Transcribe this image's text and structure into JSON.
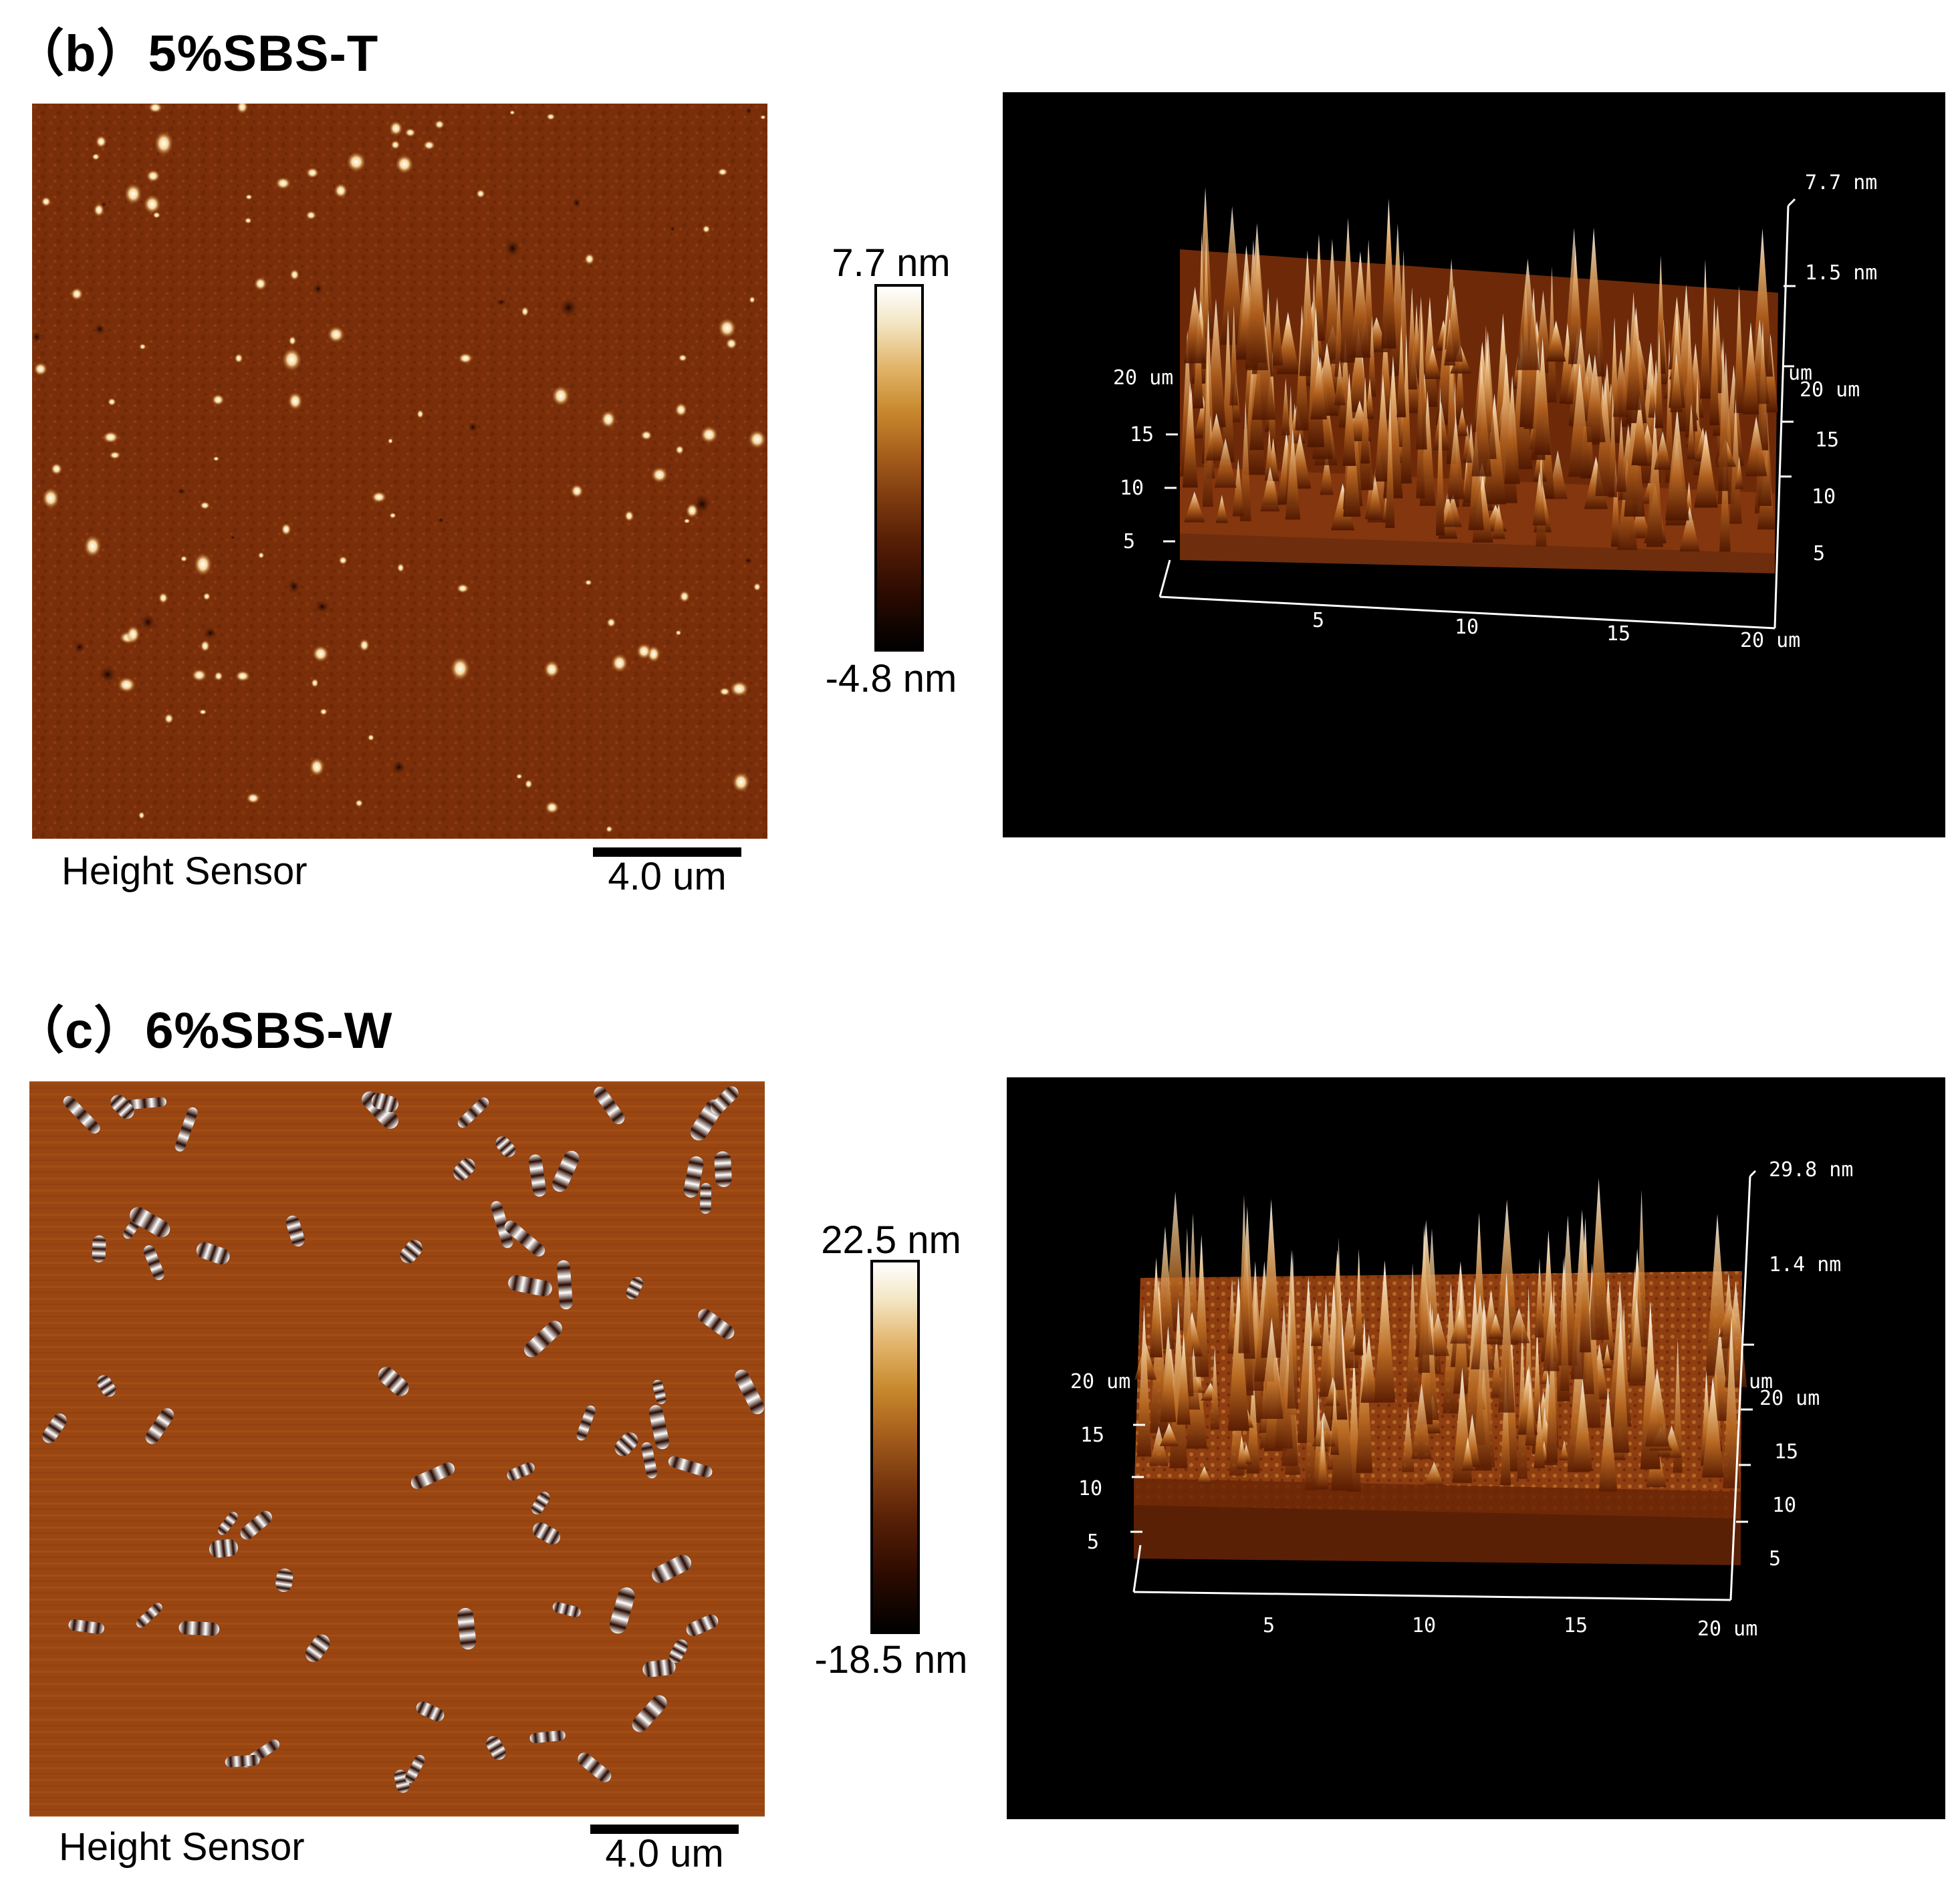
{
  "panels": [
    {
      "id": "b",
      "label": "（b）",
      "name": "5%SBS-T",
      "sensor": "Height Sensor",
      "scalebar": "4.0 um",
      "colorbar": {
        "max": "7.7 nm",
        "min": "-4.8 nm"
      },
      "view3d": {
        "z_top": "7.7 nm",
        "z_second": "1.5 nm",
        "y_left": {
          "top": "20 um",
          "ticks": [
            "15",
            "10",
            "5"
          ]
        },
        "y_right": {
          "top": "20 um",
          "ticks": [
            "15",
            "10",
            "5"
          ],
          "fragment": "um"
        },
        "x_ticks": [
          "5",
          "10",
          "15",
          "20 um"
        ]
      }
    },
    {
      "id": "c",
      "label": "（c）",
      "name": "6%SBS-W",
      "sensor": "Height Sensor",
      "scalebar": "4.0 um",
      "colorbar": {
        "max": "22.5 nm",
        "min": "-18.5 nm"
      },
      "view3d": {
        "z_top": "29.8 nm",
        "z_second": "1.4 nm",
        "y_left": {
          "top": "20 um",
          "ticks": [
            "15",
            "10",
            "5"
          ]
        },
        "y_right": {
          "top": "20 um",
          "ticks": [
            "15",
            "10",
            "5"
          ],
          "fragment": "um"
        },
        "x_ticks": [
          "5",
          "10",
          "15",
          "20 um"
        ]
      }
    }
  ]
}
